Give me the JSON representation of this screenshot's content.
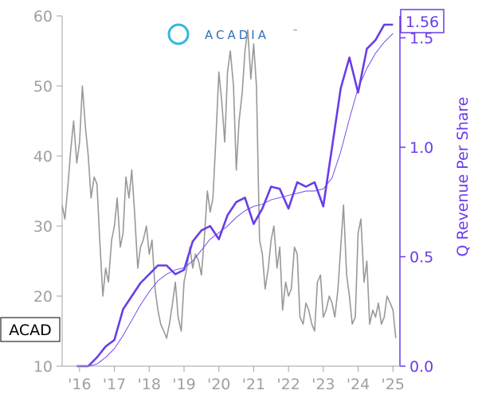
{
  "chart_data": {
    "type": "line",
    "title": "",
    "ticker": "ACAD",
    "logo_text": "ACADIA",
    "logo_trademark": "™",
    "last_value_label": "1.56",
    "ylabel_right": "Q Revenue Per Share",
    "x_tick_labels": [
      "'16",
      "'17",
      "'18",
      "'19",
      "'20",
      "'21",
      "'22",
      "'23",
      "'24",
      "'25"
    ],
    "x_tick_years": [
      2016,
      2017,
      2018,
      2019,
      2020,
      2021,
      2022,
      2023,
      2024,
      2025
    ],
    "xlim": [
      2015.5,
      2025.2
    ],
    "y_left": {
      "ticks": [
        10,
        20,
        30,
        40,
        50,
        60
      ],
      "lim": [
        10,
        60
      ]
    },
    "y_right": {
      "ticks": [
        "0.0",
        "0.5",
        "1.0",
        "1.5"
      ],
      "tick_values": [
        0.0,
        0.5,
        1.0,
        1.5
      ],
      "lim": [
        0.0,
        1.6
      ]
    },
    "colors": {
      "price": "#999999",
      "revenue": "#6a3de8",
      "axis_left": "#a0a0a0",
      "axis_right": "#6a3de8"
    },
    "series": [
      {
        "axis": "left",
        "style": "price",
        "x": [
          2015.5,
          2015.58,
          2015.67,
          2015.75,
          2015.83,
          2015.92,
          2016.0,
          2016.08,
          2016.17,
          2016.25,
          2016.33,
          2016.42,
          2016.5,
          2016.58,
          2016.67,
          2016.75,
          2016.83,
          2016.92,
          2017.0,
          2017.08,
          2017.17,
          2017.25,
          2017.33,
          2017.42,
          2017.5,
          2017.58,
          2017.67,
          2017.75,
          2017.83,
          2017.92,
          2018.0,
          2018.08,
          2018.17,
          2018.25,
          2018.33,
          2018.42,
          2018.5,
          2018.58,
          2018.67,
          2018.75,
          2018.83,
          2018.92,
          2019.0,
          2019.08,
          2019.17,
          2019.25,
          2019.33,
          2019.42,
          2019.5,
          2019.58,
          2019.67,
          2019.75,
          2019.83,
          2019.92,
          2020.0,
          2020.08,
          2020.17,
          2020.25,
          2020.33,
          2020.42,
          2020.5,
          2020.58,
          2020.67,
          2020.75,
          2020.83,
          2020.92,
          2021.0,
          2021.08,
          2021.17,
          2021.25,
          2021.33,
          2021.42,
          2021.5,
          2021.58,
          2021.67,
          2021.75,
          2021.83,
          2021.92,
          2022.0,
          2022.08,
          2022.17,
          2022.25,
          2022.33,
          2022.42,
          2022.5,
          2022.58,
          2022.67,
          2022.75,
          2022.83,
          2022.92,
          2023.0,
          2023.08,
          2023.17,
          2023.25,
          2023.33,
          2023.42,
          2023.5,
          2023.58,
          2023.67,
          2023.75,
          2023.83,
          2023.92,
          2024.0,
          2024.08,
          2024.17,
          2024.25,
          2024.33,
          2024.42,
          2024.5,
          2024.58,
          2024.67,
          2024.75,
          2024.83,
          2024.92,
          2025.0,
          2025.08
        ],
        "values": [
          33,
          31,
          36,
          41,
          45,
          39,
          42,
          50,
          44,
          40,
          34,
          37,
          36,
          28,
          20,
          24,
          22,
          28,
          30,
          34,
          27,
          29,
          37,
          34,
          38,
          32,
          24,
          27,
          28,
          30,
          26,
          28,
          21,
          18,
          16,
          15,
          14,
          16,
          19,
          22,
          17,
          15,
          22,
          24,
          27,
          24,
          26,
          25,
          23,
          28,
          35,
          32,
          34,
          43,
          52,
          48,
          42,
          52,
          55,
          50,
          38,
          45,
          49,
          55,
          58,
          51,
          56,
          50,
          28,
          26,
          21,
          24,
          28,
          30,
          24,
          27,
          18,
          22,
          20,
          21,
          27,
          26,
          17,
          16,
          19,
          18,
          16,
          15,
          22,
          23,
          17,
          18,
          20,
          19,
          17,
          21,
          27,
          33,
          23,
          20,
          16,
          17,
          29,
          31,
          22,
          25,
          16,
          18,
          17,
          19,
          16,
          17,
          20,
          19,
          18,
          14
        ]
      },
      {
        "axis": "right",
        "style": "revenue",
        "x": [
          2015.92,
          2016.0,
          2016.25,
          2016.5,
          2016.75,
          2017.0,
          2017.25,
          2017.5,
          2017.75,
          2018.0,
          2018.25,
          2018.5,
          2018.75,
          2019.0,
          2019.25,
          2019.5,
          2019.75,
          2020.0,
          2020.25,
          2020.5,
          2020.75,
          2021.0,
          2021.25,
          2021.5,
          2021.75,
          2022.0,
          2022.25,
          2022.5,
          2022.75,
          2023.0,
          2023.25,
          2023.5,
          2023.75,
          2024.0,
          2024.25,
          2024.5,
          2024.75,
          2025.0
        ],
        "values": [
          0.0,
          0.0,
          0.0,
          0.04,
          0.09,
          0.12,
          0.26,
          0.32,
          0.38,
          0.42,
          0.46,
          0.46,
          0.42,
          0.44,
          0.57,
          0.62,
          0.64,
          0.58,
          0.69,
          0.75,
          0.77,
          0.65,
          0.72,
          0.82,
          0.81,
          0.72,
          0.84,
          0.82,
          0.84,
          0.73,
          1.0,
          1.27,
          1.41,
          1.25,
          1.45,
          1.49,
          1.56,
          1.56
        ]
      },
      {
        "axis": "right",
        "style": "revenue-trend",
        "x": [
          2016.25,
          2016.5,
          2016.75,
          2017.0,
          2017.25,
          2017.5,
          2017.75,
          2018.0,
          2018.25,
          2018.5,
          2018.75,
          2019.0,
          2019.25,
          2019.5,
          2019.75,
          2020.0,
          2020.25,
          2020.5,
          2020.75,
          2021.0,
          2021.25,
          2021.5,
          2021.75,
          2022.0,
          2022.25,
          2022.5,
          2022.75,
          2023.0,
          2023.25,
          2023.5,
          2023.75,
          2024.0,
          2024.25,
          2024.5,
          2024.75,
          2025.0
        ],
        "values": [
          0.0,
          0.01,
          0.04,
          0.08,
          0.14,
          0.21,
          0.28,
          0.34,
          0.39,
          0.42,
          0.44,
          0.45,
          0.48,
          0.53,
          0.58,
          0.61,
          0.64,
          0.68,
          0.71,
          0.73,
          0.74,
          0.76,
          0.77,
          0.78,
          0.79,
          0.8,
          0.8,
          0.81,
          0.86,
          0.98,
          1.13,
          1.27,
          1.36,
          1.43,
          1.48,
          1.52
        ]
      }
    ]
  }
}
